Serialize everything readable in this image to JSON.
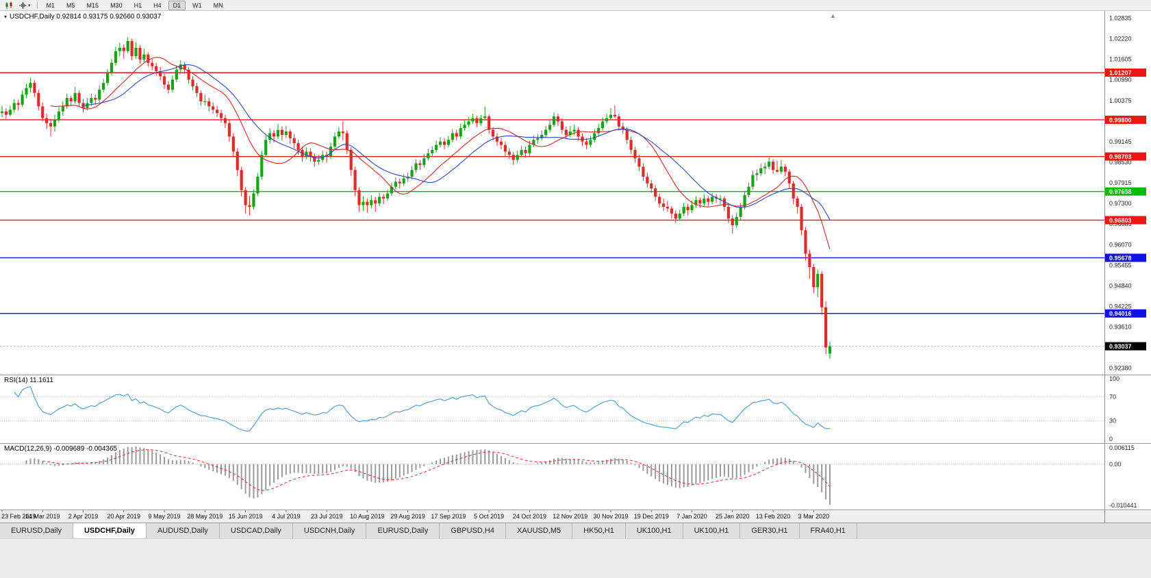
{
  "toolbar": {
    "timeframes": [
      "M1",
      "M5",
      "M15",
      "M30",
      "H1",
      "H4",
      "D1",
      "W1",
      "MN"
    ],
    "active_timeframe": "D1"
  },
  "chart_data": {
    "type": "candlestick",
    "symbol": "USDCHF",
    "timeframe": "Daily",
    "legend": "USDCHF,Daily 0.92814 0.93175 0.92660 0.93037",
    "ohlc": {
      "open": "0.92814",
      "high": "0.93175",
      "low": "0.92660",
      "close": "0.93037"
    },
    "colors": {
      "up": "#17a317",
      "down": "#e02b2b"
    },
    "price_axis_ticks": [
      "1.02835",
      "1.02220",
      "1.01605",
      "1.00990",
      "1.00375",
      "0.99760",
      "0.99145",
      "0.98530",
      "0.97915",
      "0.97300",
      "0.96685",
      "0.96070",
      "0.95455",
      "0.94840",
      "0.94225",
      "0.93610",
      "0.92995",
      "0.92380"
    ],
    "hlines": [
      {
        "label": "1.01207",
        "value": 1.01207,
        "color": "#ef1515"
      },
      {
        "label": "0.99800",
        "value": 0.998,
        "color": "#ef1515"
      },
      {
        "label": "0.98703",
        "value": 0.98703,
        "color": "#ef1515"
      },
      {
        "label": "0.97658",
        "value": 0.97658,
        "color": "#00bb00"
      },
      {
        "label": "0.96803",
        "value": 0.96803,
        "color": "#ef1515"
      },
      {
        "label": "0.95678",
        "value": 0.95678,
        "color": "#1010e8"
      },
      {
        "label": "0.94016",
        "value": 0.94016,
        "color": "#1010e8"
      }
    ],
    "current_price": {
      "label": "0.93037",
      "value": 0.93037
    },
    "moving_averages": [
      {
        "name": "ma-fast-red",
        "method": "sma",
        "period": 13,
        "color": "#d42525"
      },
      {
        "name": "ma-slow-blue",
        "method": "sma",
        "period": 21,
        "color": "#2b47c4"
      }
    ],
    "date_labels": [
      "23 Feb 2019",
      "14 Mar 2019",
      "2 Apr 2019",
      "20 Apr 2019",
      "9 May 2019",
      "28 May 2019",
      "15 Jun 2019",
      "4 Jul 2019",
      "23 Jul 2019",
      "10 Aug 2019",
      "29 Aug 2019",
      "17 Sep 2019",
      "5 Oct 2019",
      "24 Oct 2019",
      "12 Nov 2019",
      "30 Nov 2019",
      "19 Dec 2019",
      "7 Jan 2020",
      "25 Jan 2020",
      "13 Feb 2020",
      "3 Mar 2020"
    ],
    "rsi": {
      "label": "RSI(14) 11.1611",
      "period": 14,
      "value": 11.1611,
      "color": "#4898d0",
      "axis_labels": [
        "100",
        "70",
        "30",
        "0"
      ],
      "levels": [
        70,
        30
      ]
    },
    "macd": {
      "label": "MACD(12,26,9) -0.009689 -0.004365",
      "fast": 12,
      "slow": 26,
      "signal_period": 9,
      "value": -0.009689,
      "signal": -0.004365,
      "axis_labels": [
        "0.006115",
        "0.00",
        "-0.010441"
      ],
      "histogram_color": "#9a9a9a",
      "signal_color": "#e02b2b"
    },
    "candles": [
      [
        1.0,
        1.0022,
        0.9988,
        1.0005
      ],
      [
        1.0005,
        1.0015,
        0.9982,
        0.9995
      ],
      [
        0.9995,
        1.0022,
        0.999,
        1.001
      ],
      [
        1.001,
        1.0042,
        1.0002,
        1.003
      ],
      [
        1.003,
        1.004,
        1.0008,
        1.0025
      ],
      [
        1.0025,
        1.0068,
        1.0018,
        1.0055
      ],
      [
        1.0055,
        1.0088,
        1.0045,
        1.0075
      ],
      [
        1.0075,
        1.0105,
        1.0062,
        1.009
      ],
      [
        1.009,
        1.0098,
        1.0048,
        1.006
      ],
      [
        1.006,
        1.007,
        1.0008,
        1.002
      ],
      [
        1.002,
        1.0032,
        0.9975,
        0.9985
      ],
      [
        0.9985,
        0.9998,
        0.9952,
        0.997
      ],
      [
        0.997,
        0.9982,
        0.993,
        0.996
      ],
      [
        0.996,
        0.9995,
        0.9945,
        0.998
      ],
      [
        0.998,
        1.0018,
        0.9972,
        1.0005
      ],
      [
        1.0005,
        1.0035,
        0.9992,
        1.002
      ],
      [
        1.002,
        1.0058,
        1.0012,
        1.0045
      ],
      [
        1.0045,
        1.0052,
        1.002,
        1.0035
      ],
      [
        1.0035,
        1.0078,
        1.0028,
        1.006
      ],
      [
        1.006,
        1.0068,
        1.0018,
        1.003
      ],
      [
        1.003,
        1.0042,
        1.0002,
        1.0015
      ],
      [
        1.0015,
        1.0045,
        1.0008,
        1.003
      ],
      [
        1.003,
        1.0058,
        1.0022,
        1.0045
      ],
      [
        1.0045,
        1.0055,
        1.0025,
        1.004
      ],
      [
        1.004,
        1.0082,
        1.0032,
        1.007
      ],
      [
        1.007,
        1.0102,
        1.0062,
        1.009
      ],
      [
        1.009,
        1.0132,
        1.0082,
        1.012
      ],
      [
        1.012,
        1.0162,
        1.0112,
        1.015
      ],
      [
        1.015,
        1.0198,
        1.0142,
        1.0185
      ],
      [
        1.0185,
        1.021,
        1.017,
        1.0195
      ],
      [
        1.0195,
        1.0205,
        1.0162,
        1.0185
      ],
      [
        1.0185,
        1.0226,
        1.0178,
        1.0215
      ],
      [
        1.0215,
        1.0222,
        1.0158,
        1.017
      ],
      [
        1.017,
        1.0212,
        1.0162,
        1.0195
      ],
      [
        1.0195,
        1.0202,
        1.0148,
        1.016
      ],
      [
        1.016,
        1.0192,
        1.0152,
        1.0175
      ],
      [
        1.0175,
        1.0182,
        1.0138,
        1.015
      ],
      [
        1.015,
        1.0162,
        1.0128,
        1.014
      ],
      [
        1.014,
        1.015,
        1.0112,
        1.0125
      ],
      [
        1.0125,
        1.0138,
        1.0098,
        1.011
      ],
      [
        1.011,
        1.0118,
        1.0072,
        1.0085
      ],
      [
        1.0085,
        1.0095,
        1.0058,
        1.007
      ],
      [
        1.007,
        1.0112,
        1.0062,
        1.01
      ],
      [
        1.01,
        1.0142,
        1.0092,
        1.013
      ],
      [
        1.013,
        1.0158,
        1.0122,
        1.0145
      ],
      [
        1.0145,
        1.0152,
        1.0118,
        1.013
      ],
      [
        1.013,
        1.0138,
        1.0088,
        1.01
      ],
      [
        1.01,
        1.011,
        1.0068,
        1.008
      ],
      [
        1.008,
        1.009,
        1.0048,
        1.006
      ],
      [
        1.006,
        1.0068,
        1.0022,
        1.0035
      ],
      [
        1.0035,
        1.0055,
        1.0022,
        1.0035
      ],
      [
        1.0035,
        1.0045,
        1.0005,
        1.002
      ],
      [
        1.002,
        1.0032,
        0.9998,
        1.001
      ],
      [
        1.001,
        1.0022,
        0.9988,
        1.0
      ],
      [
        1.0,
        1.001,
        0.9972,
        0.9985
      ],
      [
        0.9985,
        0.9995,
        0.9955,
        0.997
      ],
      [
        0.997,
        0.9978,
        0.9915,
        0.993
      ],
      [
        0.993,
        0.994,
        0.9868,
        0.9885
      ],
      [
        0.9885,
        0.9895,
        0.9812,
        0.983
      ],
      [
        0.983,
        0.984,
        0.9752,
        0.977
      ],
      [
        0.977,
        0.9778,
        0.97,
        0.9725
      ],
      [
        0.9725,
        0.9752,
        0.9695,
        0.972
      ],
      [
        0.972,
        0.9772,
        0.9712,
        0.976
      ],
      [
        0.976,
        0.9822,
        0.9752,
        0.981
      ],
      [
        0.981,
        0.9888,
        0.9802,
        0.9875
      ],
      [
        0.9875,
        0.9932,
        0.9868,
        0.992
      ],
      [
        0.992,
        0.9955,
        0.9908,
        0.994
      ],
      [
        0.994,
        0.995,
        0.9912,
        0.993
      ],
      [
        0.993,
        0.9968,
        0.9922,
        0.995
      ],
      [
        0.995,
        0.996,
        0.9918,
        0.9935
      ],
      [
        0.9935,
        0.9962,
        0.9925,
        0.9945
      ],
      [
        0.9945,
        0.9952,
        0.9908,
        0.9925
      ],
      [
        0.9925,
        0.9938,
        0.9895,
        0.991
      ],
      [
        0.991,
        0.992,
        0.9875,
        0.989
      ],
      [
        0.989,
        0.99,
        0.9855,
        0.987
      ],
      [
        0.987,
        0.9898,
        0.9862,
        0.9885
      ],
      [
        0.9885,
        0.9895,
        0.9855,
        0.987
      ],
      [
        0.987,
        0.988,
        0.984,
        0.9855
      ],
      [
        0.9855,
        0.9875,
        0.9845,
        0.986
      ],
      [
        0.986,
        0.9888,
        0.9852,
        0.9875
      ],
      [
        0.9875,
        0.9885,
        0.9852,
        0.987
      ],
      [
        0.987,
        0.9912,
        0.9862,
        0.99
      ],
      [
        0.99,
        0.9942,
        0.9892,
        0.993
      ],
      [
        0.993,
        0.9958,
        0.9922,
        0.9945
      ],
      [
        0.9945,
        0.9975,
        0.9918,
        0.994
      ],
      [
        0.994,
        0.9948,
        0.9878,
        0.989
      ],
      [
        0.989,
        0.9898,
        0.9812,
        0.983
      ],
      [
        0.983,
        0.984,
        0.9752,
        0.977
      ],
      [
        0.977,
        0.9778,
        0.9705,
        0.9725
      ],
      [
        0.9725,
        0.9752,
        0.9708,
        0.9735
      ],
      [
        0.9735,
        0.9745,
        0.9702,
        0.9725
      ],
      [
        0.9725,
        0.9755,
        0.9715,
        0.974
      ],
      [
        0.974,
        0.975,
        0.9705,
        0.973
      ],
      [
        0.973,
        0.9762,
        0.9722,
        0.975
      ],
      [
        0.975,
        0.9758,
        0.9728,
        0.9745
      ],
      [
        0.9745,
        0.9772,
        0.9738,
        0.976
      ],
      [
        0.976,
        0.9792,
        0.9752,
        0.978
      ],
      [
        0.978,
        0.9808,
        0.9772,
        0.9795
      ],
      [
        0.9795,
        0.9805,
        0.9775,
        0.979
      ],
      [
        0.979,
        0.9818,
        0.9782,
        0.9805
      ],
      [
        0.9805,
        0.9822,
        0.9795,
        0.981
      ],
      [
        0.981,
        0.9842,
        0.9802,
        0.983
      ],
      [
        0.983,
        0.9862,
        0.9822,
        0.985
      ],
      [
        0.985,
        0.986,
        0.983,
        0.9845
      ],
      [
        0.9845,
        0.9878,
        0.9838,
        0.9865
      ],
      [
        0.9865,
        0.9892,
        0.9858,
        0.988
      ],
      [
        0.988,
        0.9902,
        0.9872,
        0.989
      ],
      [
        0.989,
        0.9918,
        0.9882,
        0.9905
      ],
      [
        0.9905,
        0.9928,
        0.9898,
        0.9915
      ],
      [
        0.9915,
        0.9925,
        0.9892,
        0.9905
      ],
      [
        0.9905,
        0.9932,
        0.9898,
        0.992
      ],
      [
        0.992,
        0.9952,
        0.9912,
        0.994
      ],
      [
        0.994,
        0.995,
        0.9918,
        0.993
      ],
      [
        0.993,
        0.9968,
        0.9922,
        0.9955
      ],
      [
        0.9955,
        0.9978,
        0.9948,
        0.9965
      ],
      [
        0.9965,
        0.9988,
        0.9958,
        0.9975
      ],
      [
        0.9975,
        0.9998,
        0.9968,
        0.9985
      ],
      [
        0.9985,
        0.9992,
        0.9958,
        0.997
      ],
      [
        0.997,
        0.9995,
        0.9962,
        0.9985
      ],
      [
        0.9985,
        1.002,
        0.9978,
        0.999
      ],
      [
        0.999,
        0.9996,
        0.9938,
        0.995
      ],
      [
        0.995,
        0.9957,
        0.9918,
        0.993
      ],
      [
        0.993,
        0.994,
        0.9902,
        0.9915
      ],
      [
        0.9915,
        0.9925,
        0.9892,
        0.9905
      ],
      [
        0.9905,
        0.9915,
        0.9872,
        0.9885
      ],
      [
        0.9885,
        0.9895,
        0.9862,
        0.9875
      ],
      [
        0.9875,
        0.9885,
        0.9845,
        0.986
      ],
      [
        0.986,
        0.9888,
        0.9852,
        0.9875
      ],
      [
        0.9875,
        0.9902,
        0.9868,
        0.989
      ],
      [
        0.989,
        0.99,
        0.9868,
        0.988
      ],
      [
        0.988,
        0.9918,
        0.9872,
        0.9905
      ],
      [
        0.9905,
        0.9932,
        0.9898,
        0.992
      ],
      [
        0.992,
        0.9938,
        0.9908,
        0.9925
      ],
      [
        0.9925,
        0.9948,
        0.9918,
        0.9935
      ],
      [
        0.9935,
        0.9962,
        0.9928,
        0.995
      ],
      [
        0.995,
        0.9978,
        0.9942,
        0.9965
      ],
      [
        0.9965,
        1.0002,
        0.9958,
        0.999
      ],
      [
        0.999,
        0.9998,
        0.9962,
        0.9975
      ],
      [
        0.9975,
        0.9985,
        0.9938,
        0.995
      ],
      [
        0.995,
        0.996,
        0.9922,
        0.9935
      ],
      [
        0.9935,
        0.9962,
        0.9928,
        0.9945
      ],
      [
        0.9945,
        0.9965,
        0.9935,
        0.995
      ],
      [
        0.995,
        0.9958,
        0.9918,
        0.993
      ],
      [
        0.993,
        0.994,
        0.9902,
        0.9915
      ],
      [
        0.9915,
        0.9925,
        0.9892,
        0.9905
      ],
      [
        0.9905,
        0.9932,
        0.9898,
        0.992
      ],
      [
        0.992,
        0.9952,
        0.9912,
        0.994
      ],
      [
        0.994,
        0.9968,
        0.9932,
        0.9955
      ],
      [
        0.9955,
        0.9988,
        0.9948,
        0.9975
      ],
      [
        0.9975,
        0.9998,
        0.9968,
        0.9985
      ],
      [
        0.9985,
        1.0015,
        0.9978,
        0.9995
      ],
      [
        0.9995,
        1.0023,
        0.9985,
        0.999
      ],
      [
        0.999,
        0.9998,
        0.9948,
        0.996
      ],
      [
        0.996,
        0.9972,
        0.9938,
        0.995
      ],
      [
        0.995,
        0.9958,
        0.9908,
        0.992
      ],
      [
        0.992,
        0.993,
        0.9878,
        0.989
      ],
      [
        0.989,
        0.99,
        0.9852,
        0.9865
      ],
      [
        0.9865,
        0.9875,
        0.9828,
        0.984
      ],
      [
        0.984,
        0.985,
        0.9798,
        0.981
      ],
      [
        0.981,
        0.9822,
        0.9778,
        0.979
      ],
      [
        0.979,
        0.98,
        0.9762,
        0.9775
      ],
      [
        0.9775,
        0.9785,
        0.9738,
        0.975
      ],
      [
        0.975,
        0.976,
        0.9718,
        0.973
      ],
      [
        0.973,
        0.9745,
        0.9708,
        0.972
      ],
      [
        0.972,
        0.9738,
        0.9705,
        0.9715
      ],
      [
        0.9715,
        0.9722,
        0.9685,
        0.97
      ],
      [
        0.97,
        0.971,
        0.9672,
        0.9685
      ],
      [
        0.9685,
        0.9712,
        0.9678,
        0.97
      ],
      [
        0.97,
        0.9732,
        0.9692,
        0.972
      ],
      [
        0.972,
        0.9728,
        0.9695,
        0.971
      ],
      [
        0.971,
        0.9738,
        0.9702,
        0.9725
      ],
      [
        0.9725,
        0.9752,
        0.9718,
        0.974
      ],
      [
        0.974,
        0.9748,
        0.9718,
        0.973
      ],
      [
        0.973,
        0.9758,
        0.9722,
        0.9745
      ],
      [
        0.9745,
        0.9752,
        0.9722,
        0.9735
      ],
      [
        0.9735,
        0.9762,
        0.9728,
        0.975
      ],
      [
        0.975,
        0.9758,
        0.9732,
        0.9745
      ],
      [
        0.9745,
        0.9755,
        0.9728,
        0.9745
      ],
      [
        0.9745,
        0.9752,
        0.9708,
        0.972
      ],
      [
        0.972,
        0.9728,
        0.9672,
        0.9685
      ],
      [
        0.9685,
        0.9695,
        0.964,
        0.9665
      ],
      [
        0.9665,
        0.9702,
        0.9658,
        0.969
      ],
      [
        0.969,
        0.9732,
        0.9682,
        0.972
      ],
      [
        0.972,
        0.9768,
        0.9712,
        0.9755
      ],
      [
        0.9755,
        0.9792,
        0.9748,
        0.978
      ],
      [
        0.978,
        0.9828,
        0.9772,
        0.9815
      ],
      [
        0.9815,
        0.9832,
        0.9798,
        0.982
      ],
      [
        0.982,
        0.9848,
        0.9812,
        0.9835
      ],
      [
        0.9835,
        0.9852,
        0.9818,
        0.984
      ],
      [
        0.984,
        0.9868,
        0.9832,
        0.9855
      ],
      [
        0.9855,
        0.9862,
        0.9818,
        0.983
      ],
      [
        0.983,
        0.9858,
        0.9822,
        0.9825
      ],
      [
        0.9825,
        0.986,
        0.9818,
        0.984
      ],
      [
        0.984,
        0.9848,
        0.9812,
        0.9825
      ],
      [
        0.9825,
        0.9832,
        0.9775,
        0.979
      ],
      [
        0.979,
        0.9798,
        0.9728,
        0.9745
      ],
      [
        0.9745,
        0.9752,
        0.97,
        0.972
      ],
      [
        0.972,
        0.9728,
        0.9635,
        0.965
      ],
      [
        0.965,
        0.966,
        0.956,
        0.958
      ],
      [
        0.958,
        0.9592,
        0.9505,
        0.954
      ],
      [
        0.954,
        0.955,
        0.9462,
        0.948
      ],
      [
        0.948,
        0.9532,
        0.945,
        0.952
      ],
      [
        0.952,
        0.9528,
        0.9398,
        0.942
      ],
      [
        0.942,
        0.9438,
        0.928,
        0.93
      ],
      [
        0.92814,
        0.93175,
        0.9266,
        0.93037
      ]
    ]
  },
  "tabs": {
    "active_index": 1,
    "items": [
      "EURUSD,Daily",
      "USDCHF,Daily",
      "AUDUSD,Daily",
      "USDCAD,Daily",
      "USDCNH,Daily",
      "EURUSD,Daily",
      "GBPUSD,H4",
      "XAUUSD,M5",
      "HK50,H1",
      "UK100,H1",
      "UK100,H1",
      "GER30,H1",
      "FRA40,H1"
    ]
  }
}
